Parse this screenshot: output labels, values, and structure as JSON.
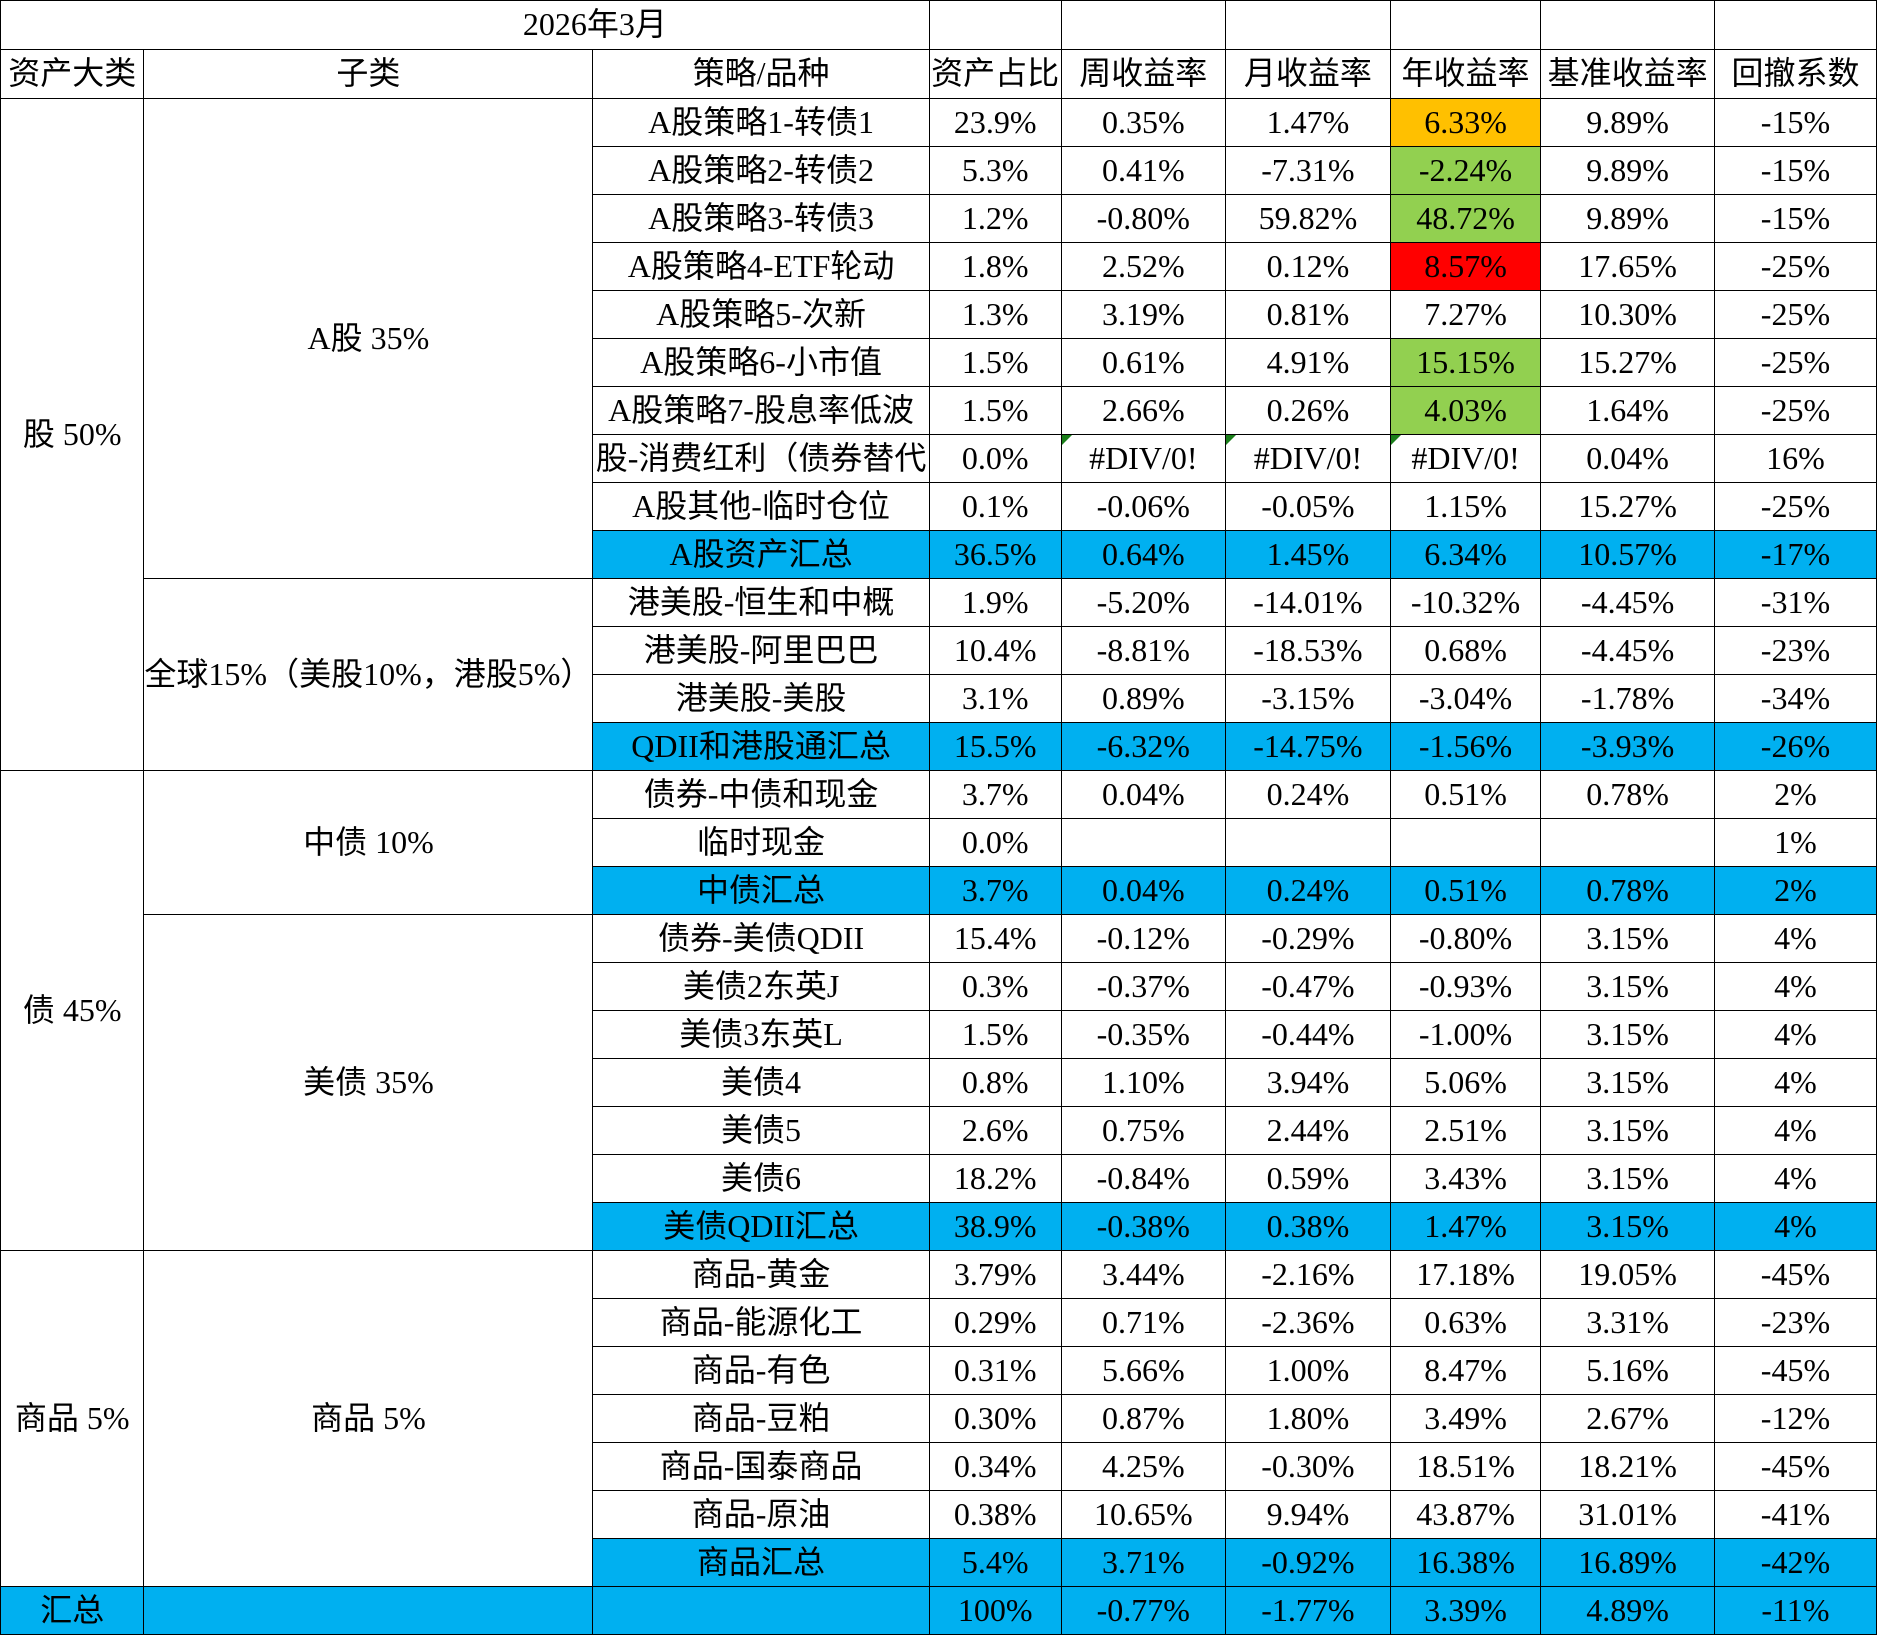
{
  "title": "2026年3月",
  "headers": {
    "category": "资产大类",
    "subclass": "子类",
    "strategy": "策略/品种",
    "weight": "资产占比",
    "weekly": "周收益率",
    "monthly": "月收益率",
    "yearly": "年收益率",
    "benchmark": "基准收益率",
    "drawdown": "回撤系数"
  },
  "categories": {
    "stock": "股 50%",
    "bond": "债 45%",
    "commodity": "商品 5%"
  },
  "subclasses": {
    "a_share": "A股 35%",
    "global": "全球15%（美股10%，港股5%）",
    "cn_bond": "中债 10%",
    "us_bond": "美债 35%",
    "commodity": "商品 5%"
  },
  "colors": {
    "summary_row": "#00b0f0",
    "orange": "#ffc000",
    "green": "#92d050",
    "red": "#ff0000"
  },
  "rows": [
    {
      "name": "A股策略1-转债1",
      "weight": "23.9%",
      "weekly": "0.35%",
      "monthly": "1.47%",
      "yearly": "6.33%",
      "benchmark": "9.89%",
      "drawdown": "-15%",
      "yearly_color": "orange"
    },
    {
      "name": "A股策略2-转债2",
      "weight": "5.3%",
      "weekly": "0.41%",
      "monthly": "-7.31%",
      "yearly": "-2.24%",
      "benchmark": "9.89%",
      "drawdown": "-15%",
      "yearly_color": "green"
    },
    {
      "name": "A股策略3-转债3",
      "weight": "1.2%",
      "weekly": "-0.80%",
      "monthly": "59.82%",
      "yearly": "48.72%",
      "benchmark": "9.89%",
      "drawdown": "-15%",
      "yearly_color": "green"
    },
    {
      "name": "A股策略4-ETF轮动",
      "weight": "1.8%",
      "weekly": "2.52%",
      "monthly": "0.12%",
      "yearly": "8.57%",
      "benchmark": "17.65%",
      "drawdown": "-25%",
      "yearly_color": "red"
    },
    {
      "name": "A股策略5-次新",
      "weight": "1.3%",
      "weekly": "3.19%",
      "monthly": "0.81%",
      "yearly": "7.27%",
      "benchmark": "10.30%",
      "drawdown": "-25%"
    },
    {
      "name": "A股策略6-小市值",
      "weight": "1.5%",
      "weekly": "0.61%",
      "monthly": "4.91%",
      "yearly": "15.15%",
      "benchmark": "15.27%",
      "drawdown": "-25%",
      "yearly_color": "green"
    },
    {
      "name": "A股策略7-股息率低波",
      "weight": "1.5%",
      "weekly": "2.66%",
      "monthly": "0.26%",
      "yearly": "4.03%",
      "benchmark": "1.64%",
      "drawdown": "-25%",
      "yearly_color": "green"
    },
    {
      "name": "股-消费红利（债券替代",
      "weight": "0.0%",
      "weekly": "#DIV/0!",
      "monthly": "#DIV/0!",
      "yearly": "#DIV/0!",
      "benchmark": "0.04%",
      "drawdown": "16%",
      "error": true
    },
    {
      "name": "A股其他-临时仓位",
      "weight": "0.1%",
      "weekly": "-0.06%",
      "monthly": "-0.05%",
      "yearly": "1.15%",
      "benchmark": "15.27%",
      "drawdown": "-25%"
    },
    {
      "name": "A股资产汇总",
      "weight": "36.5%",
      "weekly": "0.64%",
      "monthly": "1.45%",
      "yearly": "6.34%",
      "benchmark": "10.57%",
      "drawdown": "-17%",
      "summary": true
    },
    {
      "name": "港美股-恒生和中概",
      "weight": "1.9%",
      "weekly": "-5.20%",
      "monthly": "-14.01%",
      "yearly": "-10.32%",
      "benchmark": "-4.45%",
      "drawdown": "-31%"
    },
    {
      "name": "港美股-阿里巴巴",
      "weight": "10.4%",
      "weekly": "-8.81%",
      "monthly": "-18.53%",
      "yearly": "0.68%",
      "benchmark": "-4.45%",
      "drawdown": "-23%"
    },
    {
      "name": "港美股-美股",
      "weight": "3.1%",
      "weekly": "0.89%",
      "monthly": "-3.15%",
      "yearly": "-3.04%",
      "benchmark": "-1.78%",
      "drawdown": "-34%"
    },
    {
      "name": "QDII和港股通汇总",
      "weight": "15.5%",
      "weekly": "-6.32%",
      "monthly": "-14.75%",
      "yearly": "-1.56%",
      "benchmark": "-3.93%",
      "drawdown": "-26%",
      "summary": true
    },
    {
      "name": "债券-中债和现金",
      "weight": "3.7%",
      "weekly": "0.04%",
      "monthly": "0.24%",
      "yearly": "0.51%",
      "benchmark": "0.78%",
      "drawdown": "2%"
    },
    {
      "name": "临时现金",
      "weight": "0.0%",
      "weekly": "",
      "monthly": "",
      "yearly": "",
      "benchmark": "",
      "drawdown": "1%"
    },
    {
      "name": "中债汇总",
      "weight": "3.7%",
      "weekly": "0.04%",
      "monthly": "0.24%",
      "yearly": "0.51%",
      "benchmark": "0.78%",
      "drawdown": "2%",
      "summary": true
    },
    {
      "name": "债券-美债QDII",
      "weight": "15.4%",
      "weekly": "-0.12%",
      "monthly": "-0.29%",
      "yearly": "-0.80%",
      "benchmark": "3.15%",
      "drawdown": "4%"
    },
    {
      "name": "美债2东英J",
      "weight": "0.3%",
      "weekly": "-0.37%",
      "monthly": "-0.47%",
      "yearly": "-0.93%",
      "benchmark": "3.15%",
      "drawdown": "4%"
    },
    {
      "name": "美债3东英L",
      "weight": "1.5%",
      "weekly": "-0.35%",
      "monthly": "-0.44%",
      "yearly": "-1.00%",
      "benchmark": "3.15%",
      "drawdown": "4%"
    },
    {
      "name": "美债4",
      "weight": "0.8%",
      "weekly": "1.10%",
      "monthly": "3.94%",
      "yearly": "5.06%",
      "benchmark": "3.15%",
      "drawdown": "4%"
    },
    {
      "name": "美债5",
      "weight": "2.6%",
      "weekly": "0.75%",
      "monthly": "2.44%",
      "yearly": "2.51%",
      "benchmark": "3.15%",
      "drawdown": "4%"
    },
    {
      "name": "美债6",
      "weight": "18.2%",
      "weekly": "-0.84%",
      "monthly": "0.59%",
      "yearly": "3.43%",
      "benchmark": "3.15%",
      "drawdown": "4%"
    },
    {
      "name": "美债QDII汇总",
      "weight": "38.9%",
      "weekly": "-0.38%",
      "monthly": "0.38%",
      "yearly": "1.47%",
      "benchmark": "3.15%",
      "drawdown": "4%",
      "summary": true
    },
    {
      "name": "商品-黄金",
      "weight": "3.79%",
      "weekly": "3.44%",
      "monthly": "-2.16%",
      "yearly": "17.18%",
      "benchmark": "19.05%",
      "drawdown": "-45%"
    },
    {
      "name": "商品-能源化工",
      "weight": "0.29%",
      "weekly": "0.71%",
      "monthly": "-2.36%",
      "yearly": "0.63%",
      "benchmark": "3.31%",
      "drawdown": "-23%"
    },
    {
      "name": "商品-有色",
      "weight": "0.31%",
      "weekly": "5.66%",
      "monthly": "1.00%",
      "yearly": "8.47%",
      "benchmark": "5.16%",
      "drawdown": "-45%"
    },
    {
      "name": "商品-豆粕",
      "weight": "0.30%",
      "weekly": "0.87%",
      "monthly": "1.80%",
      "yearly": "3.49%",
      "benchmark": "2.67%",
      "drawdown": "-12%"
    },
    {
      "name": "商品-国泰商品",
      "weight": "0.34%",
      "weekly": "4.25%",
      "monthly": "-0.30%",
      "yearly": "18.51%",
      "benchmark": "18.21%",
      "drawdown": "-45%"
    },
    {
      "name": "商品-原油",
      "weight": "0.38%",
      "weekly": "10.65%",
      "monthly": "9.94%",
      "yearly": "43.87%",
      "benchmark": "31.01%",
      "drawdown": "-41%"
    },
    {
      "name": "商品汇总",
      "weight": "5.4%",
      "weekly": "3.71%",
      "monthly": "-0.92%",
      "yearly": "16.38%",
      "benchmark": "16.89%",
      "drawdown": "-42%",
      "summary": true
    }
  ],
  "total": {
    "label": "汇总",
    "weight": "100%",
    "weekly": "-0.77%",
    "monthly": "-1.77%",
    "yearly": "3.39%",
    "benchmark": "4.89%",
    "drawdown": "-11%"
  }
}
